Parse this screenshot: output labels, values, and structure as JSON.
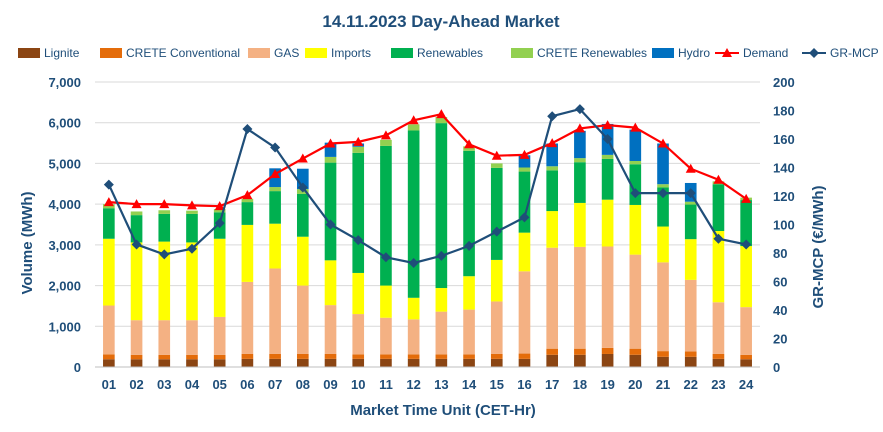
{
  "chart_data": {
    "type": "bar",
    "title": "14.11.2023  Day-Ahead Market",
    "xlabel": "Market Time Unit (CET-Hr)",
    "ylabel": "Volume (MWh)",
    "y2label": "GR-MCP (€/MWh)",
    "ylim": [
      0,
      7000
    ],
    "y2lim": [
      0,
      200
    ],
    "yticks": [
      "0",
      "1,000",
      "2,000",
      "3,000",
      "4,000",
      "5,000",
      "6,000",
      "7,000"
    ],
    "y2ticks": [
      "0",
      "20",
      "40",
      "60",
      "80",
      "100",
      "120",
      "140",
      "160",
      "180",
      "200"
    ],
    "grid": true,
    "legend_position": "top",
    "categories": [
      "01",
      "02",
      "03",
      "04",
      "05",
      "06",
      "07",
      "08",
      "09",
      "10",
      "11",
      "12",
      "13",
      "14",
      "15",
      "16",
      "17",
      "18",
      "19",
      "20",
      "21",
      "22",
      "23",
      "24"
    ],
    "stacked_series": [
      {
        "name": "Lignite",
        "color": "#8B4513",
        "values": [
          190,
          190,
          190,
          190,
          190,
          200,
          200,
          200,
          200,
          200,
          200,
          200,
          200,
          200,
          200,
          200,
          300,
          300,
          320,
          300,
          250,
          250,
          200,
          190
        ]
      },
      {
        "name": "CRETE Conventional",
        "color": "#E46C0A",
        "values": [
          120,
          110,
          110,
          110,
          110,
          120,
          120,
          120,
          120,
          110,
          110,
          110,
          110,
          110,
          120,
          130,
          150,
          150,
          150,
          150,
          140,
          130,
          120,
          110
        ]
      },
      {
        "name": "GAS",
        "color": "#F4B183",
        "values": [
          1200,
          850,
          850,
          850,
          930,
          1770,
          2100,
          1680,
          1200,
          990,
          900,
          860,
          1050,
          1100,
          1290,
          2020,
          2480,
          2500,
          2490,
          2310,
          2180,
          1760,
          1270,
          1170
        ]
      },
      {
        "name": "Imports",
        "color": "#FFFF00",
        "values": [
          1640,
          1910,
          1930,
          1910,
          1920,
          1400,
          1100,
          1200,
          1100,
          1010,
          790,
          530,
          580,
          820,
          1020,
          950,
          900,
          1080,
          1150,
          1220,
          880,
          1000,
          1750,
          1500
        ]
      },
      {
        "name": "Renewables",
        "color": "#00B050",
        "values": [
          750,
          670,
          680,
          700,
          650,
          560,
          800,
          1050,
          2400,
          2950,
          3430,
          4110,
          4050,
          3080,
          2260,
          1500,
          1000,
          1000,
          1000,
          1000,
          960,
          850,
          1150,
          1130
        ]
      },
      {
        "name": "CRETE Renewables",
        "color": "#92D050",
        "values": [
          100,
          90,
          90,
          80,
          80,
          80,
          100,
          120,
          140,
          150,
          150,
          150,
          150,
          110,
          110,
          100,
          100,
          100,
          100,
          80,
          80,
          70,
          70,
          60
        ]
      },
      {
        "name": "Hydro",
        "color": "#0070C0",
        "values": [
          0,
          0,
          0,
          0,
          0,
          0,
          460,
          500,
          350,
          80,
          0,
          0,
          0,
          0,
          0,
          300,
          560,
          670,
          760,
          770,
          1000,
          460,
          0,
          0
        ]
      }
    ],
    "line_series": [
      {
        "name": "Demand",
        "axis": "left",
        "color": "#FF0000",
        "marker": "triangle",
        "values": [
          4050,
          4000,
          4000,
          3970,
          3950,
          4220,
          4740,
          5120,
          5490,
          5530,
          5690,
          6060,
          6210,
          5470,
          5190,
          5210,
          5500,
          5860,
          5940,
          5880,
          5490,
          4870,
          4600,
          4130
        ]
      },
      {
        "name": "GR-MCP",
        "axis": "right",
        "color": "#1F4E79",
        "marker": "diamond",
        "values": [
          128,
          86,
          79,
          83,
          101,
          167,
          154,
          126,
          100,
          89,
          77,
          73,
          78,
          85,
          95,
          105,
          176,
          181,
          160,
          122,
          122,
          122,
          90,
          86
        ]
      }
    ]
  }
}
